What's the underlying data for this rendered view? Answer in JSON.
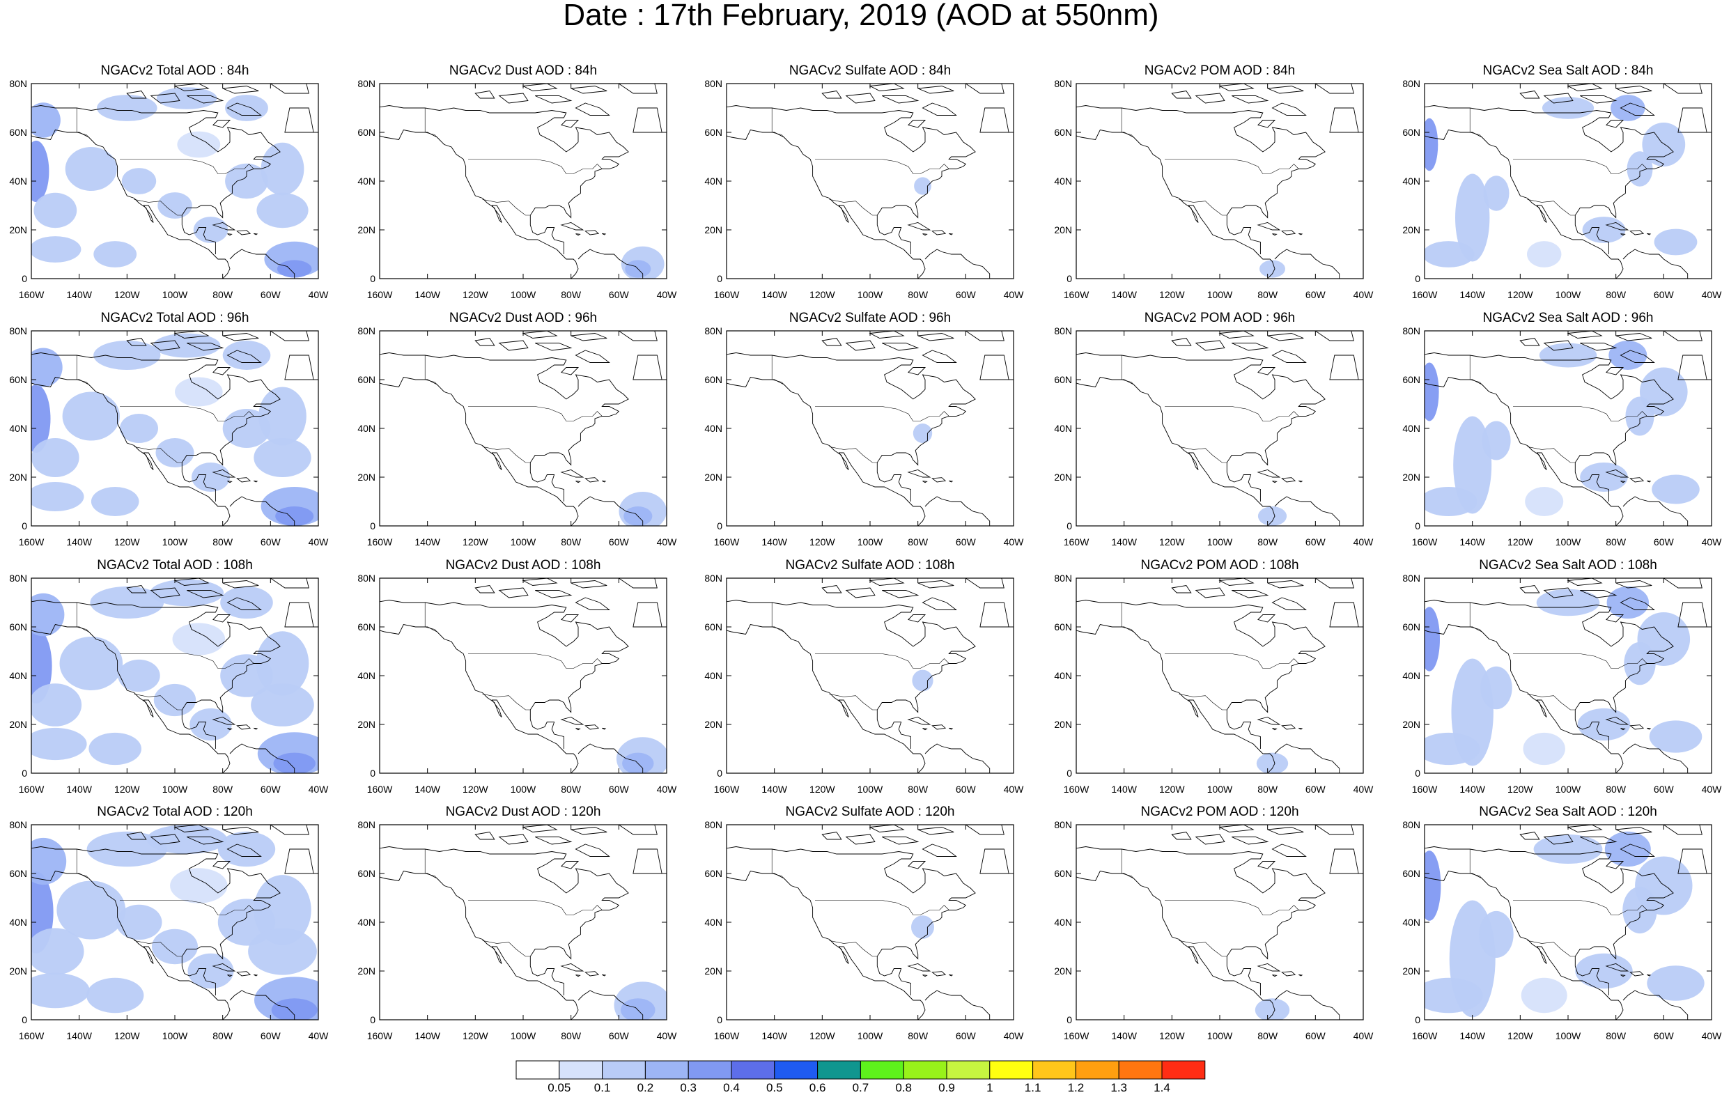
{
  "title": "Date : 17th February, 2019 (AOD at 550nm)",
  "panels": [
    {
      "title": "NGACv2 Total AOD : 84h",
      "field": "total",
      "hour": 84
    },
    {
      "title": "NGACv2 Dust AOD : 84h",
      "field": "dust",
      "hour": 84
    },
    {
      "title": "NGACv2 Sulfate AOD : 84h",
      "field": "sulfate",
      "hour": 84
    },
    {
      "title": "NGACv2 POM AOD : 84h",
      "field": "pom",
      "hour": 84
    },
    {
      "title": "NGACv2 Sea Salt AOD : 84h",
      "field": "seasalt",
      "hour": 84
    },
    {
      "title": "NGACv2 Total AOD : 96h",
      "field": "total",
      "hour": 96
    },
    {
      "title": "NGACv2 Dust AOD : 96h",
      "field": "dust",
      "hour": 96
    },
    {
      "title": "NGACv2 Sulfate AOD : 96h",
      "field": "sulfate",
      "hour": 96
    },
    {
      "title": "NGACv2 POM AOD : 96h",
      "field": "pom",
      "hour": 96
    },
    {
      "title": "NGACv2 Sea Salt AOD : 96h",
      "field": "seasalt",
      "hour": 96
    },
    {
      "title": "NGACv2 Total AOD : 108h",
      "field": "total",
      "hour": 108
    },
    {
      "title": "NGACv2 Dust AOD : 108h",
      "field": "dust",
      "hour": 108
    },
    {
      "title": "NGACv2 Sulfate AOD : 108h",
      "field": "sulfate",
      "hour": 108
    },
    {
      "title": "NGACv2 POM AOD : 108h",
      "field": "pom",
      "hour": 108
    },
    {
      "title": "NGACv2 Sea Salt AOD : 108h",
      "field": "seasalt",
      "hour": 108
    },
    {
      "title": "NGACv2 Total AOD : 120h",
      "field": "total",
      "hour": 120
    },
    {
      "title": "NGACv2 Dust AOD : 120h",
      "field": "dust",
      "hour": 120
    },
    {
      "title": "NGACv2 Sulfate AOD : 120h",
      "field": "sulfate",
      "hour": 120
    },
    {
      "title": "NGACv2 POM AOD : 120h",
      "field": "pom",
      "hour": 120
    },
    {
      "title": "NGACv2 Sea Salt  AOD : 120h",
      "field": "seasalt",
      "hour": 120
    }
  ],
  "axes": {
    "lat_ticks": [
      "0",
      "20N",
      "40N",
      "60N",
      "80N"
    ],
    "lon_ticks": [
      "160W",
      "140W",
      "120W",
      "100W",
      "80W",
      "60W",
      "40W"
    ],
    "lat_range": [
      0,
      80
    ],
    "lon_range": [
      -160,
      -40
    ]
  },
  "colorbar": {
    "levels": [
      "0.05",
      "0.1",
      "0.2",
      "0.3",
      "0.4",
      "0.5",
      "0.6",
      "0.7",
      "0.8",
      "0.9",
      "1",
      "1.1",
      "1.2",
      "1.3",
      "1.4"
    ],
    "colors": [
      "#ffffff",
      "#d6e2fb",
      "#b9ccf7",
      "#9db5f5",
      "#8199f2",
      "#5d6ee9",
      "#1f5bf1",
      "#10968f",
      "#5ef21c",
      "#98f21a",
      "#c6f540",
      "#ffff10",
      "#ffc61a",
      "#ff9f10",
      "#ff7610",
      "#ff2d14"
    ]
  },
  "map_colors": {
    "coast": "#000000",
    "light": "#d6e2fb",
    "medium": "#b9ccf7",
    "strong": "#9db5f5",
    "stronger": "#8199f2"
  }
}
